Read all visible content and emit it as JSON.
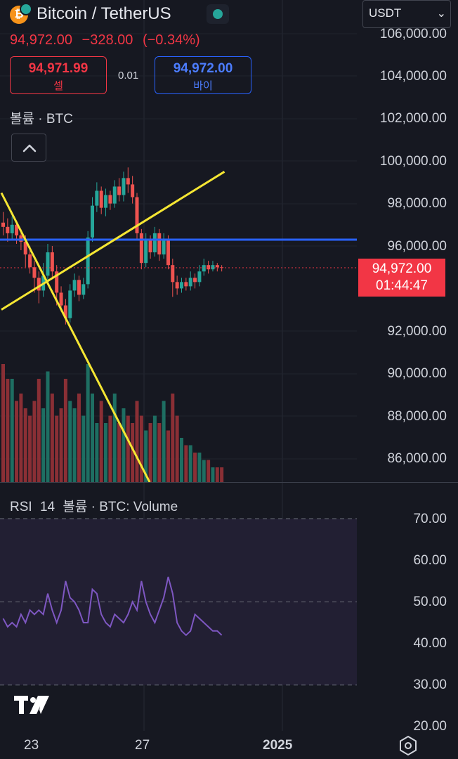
{
  "header": {
    "title": "Bitcoin / TetherUS",
    "coin_symbol": "₿",
    "status_color": "#26a69a"
  },
  "price_info": {
    "last": "94,972.00",
    "change": "−328.00",
    "change_pct": "(−0.34%)"
  },
  "trade": {
    "sell_price": "94,971.99",
    "sell_label": "셀",
    "spread": "0.01",
    "buy_price": "94,972.00",
    "buy_label": "바이"
  },
  "volume_label": "볼륨 · BTC",
  "currency_select": {
    "value": "USDT"
  },
  "price_axis": [
    "106,000.00",
    "104,000.00",
    "102,000.00",
    "100,000.00",
    "98,000.00",
    "96,000.00",
    "92,000.00",
    "90,000.00",
    "88,000.00",
    "86,000.00"
  ],
  "price_tag": {
    "price": "94,972.00",
    "countdown": "01:44:47",
    "color": "#f23645"
  },
  "rsi": {
    "name": "RSI",
    "length": "14",
    "source": "볼륨 · BTC: Volume",
    "axis": [
      "70.00",
      "60.00",
      "50.00",
      "40.00",
      "30.00",
      "20.00"
    ],
    "line_color": "#7e57c2",
    "values": [
      46,
      44,
      45,
      44,
      47,
      45,
      48,
      47,
      48,
      47,
      52,
      48,
      45,
      48,
      55,
      51,
      50,
      48,
      45,
      45,
      53,
      52,
      47,
      45,
      44,
      47,
      46,
      45,
      47,
      50,
      48,
      55,
      50,
      47,
      45,
      48,
      51,
      56,
      52,
      45,
      43,
      42,
      43,
      47,
      46,
      45,
      44,
      43,
      43,
      42
    ]
  },
  "x_axis": [
    "23",
    "27",
    "2025"
  ],
  "chart_data": {
    "type": "candlestick",
    "y_range": [
      85000,
      106800
    ],
    "candles": [
      [
        97100,
        96900,
        97600,
        96500
      ],
      [
        96900,
        96600,
        97300,
        96200
      ],
      [
        96600,
        97000,
        97400,
        96300
      ],
      [
        97000,
        96500,
        97200,
        96100
      ],
      [
        96500,
        96200,
        96800,
        95800
      ],
      [
        96200,
        95600,
        96500,
        95000
      ],
      [
        95600,
        95000,
        96000,
        94700
      ],
      [
        95000,
        94500,
        95300,
        93800
      ],
      [
        94500,
        93900,
        94800,
        93300
      ],
      [
        93900,
        94600,
        95200,
        93600
      ],
      [
        94600,
        95700,
        96100,
        94300
      ],
      [
        95700,
        94800,
        96000,
        94500
      ],
      [
        94800,
        93800,
        95100,
        93200
      ],
      [
        93800,
        93200,
        94100,
        92900
      ],
      [
        93200,
        92600,
        93500,
        92300
      ],
      [
        92600,
        93900,
        94200,
        92400
      ],
      [
        93900,
        94400,
        94700,
        93600
      ],
      [
        94400,
        93700,
        94600,
        93400
      ],
      [
        93700,
        94200,
        94500,
        93500
      ],
      [
        94200,
        96400,
        96700,
        94000
      ],
      [
        96400,
        97900,
        98300,
        96200
      ],
      [
        97900,
        98600,
        99000,
        97600
      ],
      [
        98600,
        97800,
        98800,
        97500
      ],
      [
        97800,
        98400,
        98700,
        97400
      ],
      [
        98400,
        98000,
        98600,
        97700
      ],
      [
        98000,
        98800,
        99100,
        97800
      ],
      [
        98800,
        98400,
        99200,
        98100
      ],
      [
        98400,
        99200,
        99500,
        98100
      ],
      [
        99200,
        98900,
        99700,
        98500
      ],
      [
        98900,
        98300,
        99300,
        98000
      ],
      [
        98300,
        96600,
        98500,
        96300
      ],
      [
        96600,
        95200,
        96800,
        94900
      ],
      [
        95200,
        96300,
        96600,
        95000
      ],
      [
        96300,
        95700,
        96500,
        95400
      ],
      [
        95700,
        96600,
        96900,
        95500
      ],
      [
        96600,
        95600,
        96800,
        95300
      ],
      [
        95600,
        96300,
        96600,
        95400
      ],
      [
        96300,
        95100,
        96500,
        94900
      ],
      [
        95100,
        94300,
        95400,
        93600
      ],
      [
        94300,
        94000,
        94600,
        93700
      ],
      [
        94000,
        94300,
        94500,
        93800
      ],
      [
        94300,
        94100,
        94500,
        93900
      ],
      [
        94100,
        94500,
        94800,
        93900
      ],
      [
        94500,
        94300,
        94700,
        94000
      ],
      [
        94300,
        94800,
        95100,
        94100
      ],
      [
        94800,
        95100,
        95400,
        94600
      ],
      [
        95100,
        94900,
        95300,
        94700
      ],
      [
        94900,
        95100,
        95300,
        94800
      ],
      [
        95100,
        95000,
        95200,
        94800
      ],
      [
        95000,
        94972,
        95100,
        94800
      ]
    ],
    "volumes": [
      16,
      14,
      14,
      11,
      12,
      10,
      9,
      11,
      14,
      10,
      15,
      12,
      9,
      10,
      14,
      11,
      10,
      12,
      9,
      16,
      12,
      8,
      11,
      8,
      9,
      12,
      8,
      10,
      9,
      8,
      11,
      9,
      7,
      8,
      9,
      8,
      11,
      7,
      12,
      9,
      6,
      5,
      5,
      4,
      4,
      3,
      3,
      2,
      2,
      2
    ],
    "current_price": 94972,
    "horizontal_line": {
      "price": 96300,
      "color": "#2962ff"
    },
    "trend_lines": [
      {
        "from": [
          0,
          93000
        ],
        "to": [
          50,
          99500
        ],
        "color": "#f5e633"
      },
      {
        "from": [
          0,
          98500
        ],
        "to": [
          50,
          78000
        ],
        "color": "#f5e633"
      }
    ]
  }
}
